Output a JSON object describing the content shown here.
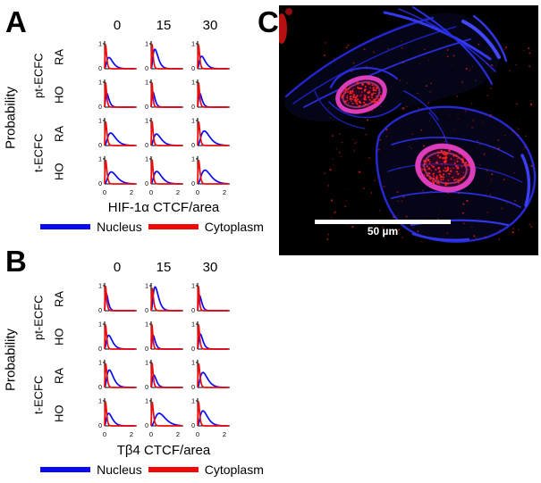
{
  "figure": {
    "panels": {
      "A": {
        "letter": "A",
        "ylabel": "Probability",
        "xlabel": "HIF-1α CTCF/area",
        "col_headers": [
          "0",
          "15",
          "30"
        ],
        "group_labels": [
          "pt-ECFC",
          "t-ECFC"
        ],
        "row_labels": [
          "RA",
          "HO",
          "RA",
          "HO"
        ]
      },
      "B": {
        "letter": "B",
        "ylabel": "Probability",
        "xlabel": "Tβ4 CTCF/area",
        "col_headers": [
          "0",
          "15",
          "30"
        ],
        "group_labels": [
          "pt-ECFC",
          "t-ECFC"
        ],
        "row_labels": [
          "RA",
          "HO",
          "RA",
          "HO"
        ]
      },
      "C": {
        "letter": "C",
        "scale_bar_label": "50 µm"
      }
    },
    "legend": {
      "items": [
        {
          "label": "Nucleus",
          "color": "#0a0af0"
        },
        {
          "label": "Cytoplasm",
          "color": "#f00a0a"
        }
      ]
    },
    "colors": {
      "nucleus": "#0a0af0",
      "cytoplasm": "#f00a0a",
      "axis": "#000000",
      "micrograph_background": "#000000",
      "filament": "#2a2ce0",
      "nuclear_ring": "#dd3cba",
      "speckle": "#ff2222",
      "scale_bar": "#ffffff"
    }
  },
  "chart_data": [
    {
      "panel": "A",
      "type": "line",
      "title": "HIF-1α CTCF/area probability distributions",
      "xlabel": "HIF-1α CTCF/area",
      "ylabel": "Probability",
      "xlim": [
        0,
        2.3
      ],
      "ylim": [
        0,
        1
      ],
      "xticks": [
        "0",
        "2"
      ],
      "yticks": [
        "0",
        "1"
      ],
      "grid": false,
      "legend_position": "below",
      "col_labels": [
        "0",
        "15",
        "30"
      ],
      "row_labels": [
        "pt-ECFC RA",
        "pt-ECFC HO",
        "t-ECFC RA",
        "t-ECFC HO"
      ],
      "series_names": [
        "Nucleus",
        "Cytoplasm"
      ],
      "cell_value_format": "[peak_x, peak_probability, shape_k] estimated from plot",
      "cells": [
        {
          "row": "pt-ECFC RA",
          "col": "0",
          "nucleus": [
            0.32,
            0.45,
            2.0
          ],
          "cytoplasm": [
            0.07,
            0.96,
            1.5
          ]
        },
        {
          "row": "pt-ECFC RA",
          "col": "15",
          "nucleus": [
            0.28,
            0.78,
            2.2
          ],
          "cytoplasm": [
            0.07,
            0.97,
            1.5
          ]
        },
        {
          "row": "pt-ECFC RA",
          "col": "30",
          "nucleus": [
            0.3,
            0.5,
            2.0
          ],
          "cytoplasm": [
            0.07,
            0.96,
            1.5
          ]
        },
        {
          "row": "pt-ECFC HO",
          "col": "0",
          "nucleus": [
            0.16,
            0.55,
            1.7
          ],
          "cytoplasm": [
            0.07,
            0.97,
            1.5
          ]
        },
        {
          "row": "pt-ECFC HO",
          "col": "15",
          "nucleus": [
            0.14,
            0.6,
            1.7
          ],
          "cytoplasm": [
            0.06,
            0.98,
            1.5
          ]
        },
        {
          "row": "pt-ECFC HO",
          "col": "30",
          "nucleus": [
            0.16,
            0.55,
            1.7
          ],
          "cytoplasm": [
            0.07,
            0.97,
            1.5
          ]
        },
        {
          "row": "t-ECFC RA",
          "col": "0",
          "nucleus": [
            0.45,
            0.5,
            2.3
          ],
          "cytoplasm": [
            0.08,
            0.95,
            1.5
          ]
        },
        {
          "row": "t-ECFC RA",
          "col": "15",
          "nucleus": [
            0.4,
            0.46,
            2.2
          ],
          "cytoplasm": [
            0.07,
            0.96,
            1.5
          ]
        },
        {
          "row": "t-ECFC RA",
          "col": "30",
          "nucleus": [
            0.5,
            0.58,
            2.4
          ],
          "cytoplasm": [
            0.08,
            0.95,
            1.5
          ]
        },
        {
          "row": "t-ECFC HO",
          "col": "0",
          "nucleus": [
            0.5,
            0.48,
            2.4
          ],
          "cytoplasm": [
            0.08,
            0.95,
            1.5
          ]
        },
        {
          "row": "t-ECFC HO",
          "col": "15",
          "nucleus": [
            0.42,
            0.5,
            2.2
          ],
          "cytoplasm": [
            0.07,
            0.96,
            1.5
          ]
        },
        {
          "row": "t-ECFC HO",
          "col": "30",
          "nucleus": [
            0.55,
            0.55,
            2.5
          ],
          "cytoplasm": [
            0.08,
            0.95,
            1.5
          ]
        }
      ]
    },
    {
      "panel": "B",
      "type": "line",
      "title": "Tβ4 CTCF/area probability distributions",
      "xlabel": "Tβ4 CTCF/area",
      "ylabel": "Probability",
      "xlim": [
        0,
        2.3
      ],
      "ylim": [
        0,
        1
      ],
      "xticks": [
        "0",
        "2"
      ],
      "yticks": [
        "0",
        "1"
      ],
      "grid": false,
      "legend_position": "below",
      "col_labels": [
        "0",
        "15",
        "30"
      ],
      "row_labels": [
        "pt-ECFC RA",
        "pt-ECFC HO",
        "t-ECFC RA",
        "t-ECFC HO"
      ],
      "series_names": [
        "Nucleus",
        "Cytoplasm"
      ],
      "cell_value_format": "[peak_x, peak_probability, shape_k] estimated from plot",
      "cells": [
        {
          "row": "pt-ECFC RA",
          "col": "0",
          "nucleus": [
            0.13,
            0.68,
            1.7
          ],
          "cytoplasm": [
            0.07,
            0.97,
            1.5
          ]
        },
        {
          "row": "pt-ECFC RA",
          "col": "15",
          "nucleus": [
            0.3,
            0.95,
            2.4
          ],
          "cytoplasm": [
            0.08,
            0.9,
            1.5
          ]
        },
        {
          "row": "pt-ECFC RA",
          "col": "30",
          "nucleus": [
            0.15,
            0.6,
            1.7
          ],
          "cytoplasm": [
            0.06,
            0.98,
            1.5
          ]
        },
        {
          "row": "pt-ECFC HO",
          "col": "0",
          "nucleus": [
            0.3,
            0.55,
            2.0
          ],
          "cytoplasm": [
            0.07,
            0.96,
            1.5
          ]
        },
        {
          "row": "pt-ECFC HO",
          "col": "15",
          "nucleus": [
            0.15,
            0.55,
            1.7
          ],
          "cytoplasm": [
            0.06,
            0.98,
            1.5
          ]
        },
        {
          "row": "pt-ECFC HO",
          "col": "30",
          "nucleus": [
            0.2,
            0.6,
            1.9
          ],
          "cytoplasm": [
            0.07,
            0.97,
            1.5
          ]
        },
        {
          "row": "t-ECFC RA",
          "col": "0",
          "nucleus": [
            0.35,
            0.7,
            2.2
          ],
          "cytoplasm": [
            0.08,
            0.95,
            1.5
          ]
        },
        {
          "row": "t-ECFC RA",
          "col": "15",
          "nucleus": [
            0.2,
            0.5,
            1.9
          ],
          "cytoplasm": [
            0.07,
            0.97,
            1.5
          ]
        },
        {
          "row": "t-ECFC RA",
          "col": "30",
          "nucleus": [
            0.4,
            0.6,
            2.2
          ],
          "cytoplasm": [
            0.08,
            0.95,
            1.5
          ]
        },
        {
          "row": "t-ECFC HO",
          "col": "0",
          "nucleus": [
            0.3,
            0.5,
            2.0
          ],
          "cytoplasm": [
            0.07,
            0.96,
            1.5
          ]
        },
        {
          "row": "t-ECFC HO",
          "col": "15",
          "nucleus": [
            0.6,
            0.5,
            2.6
          ],
          "cytoplasm": [
            0.08,
            0.95,
            1.5
          ]
        },
        {
          "row": "t-ECFC HO",
          "col": "30",
          "nucleus": [
            0.4,
            0.6,
            2.2
          ],
          "cytoplasm": [
            0.07,
            0.96,
            1.5
          ]
        }
      ]
    }
  ]
}
